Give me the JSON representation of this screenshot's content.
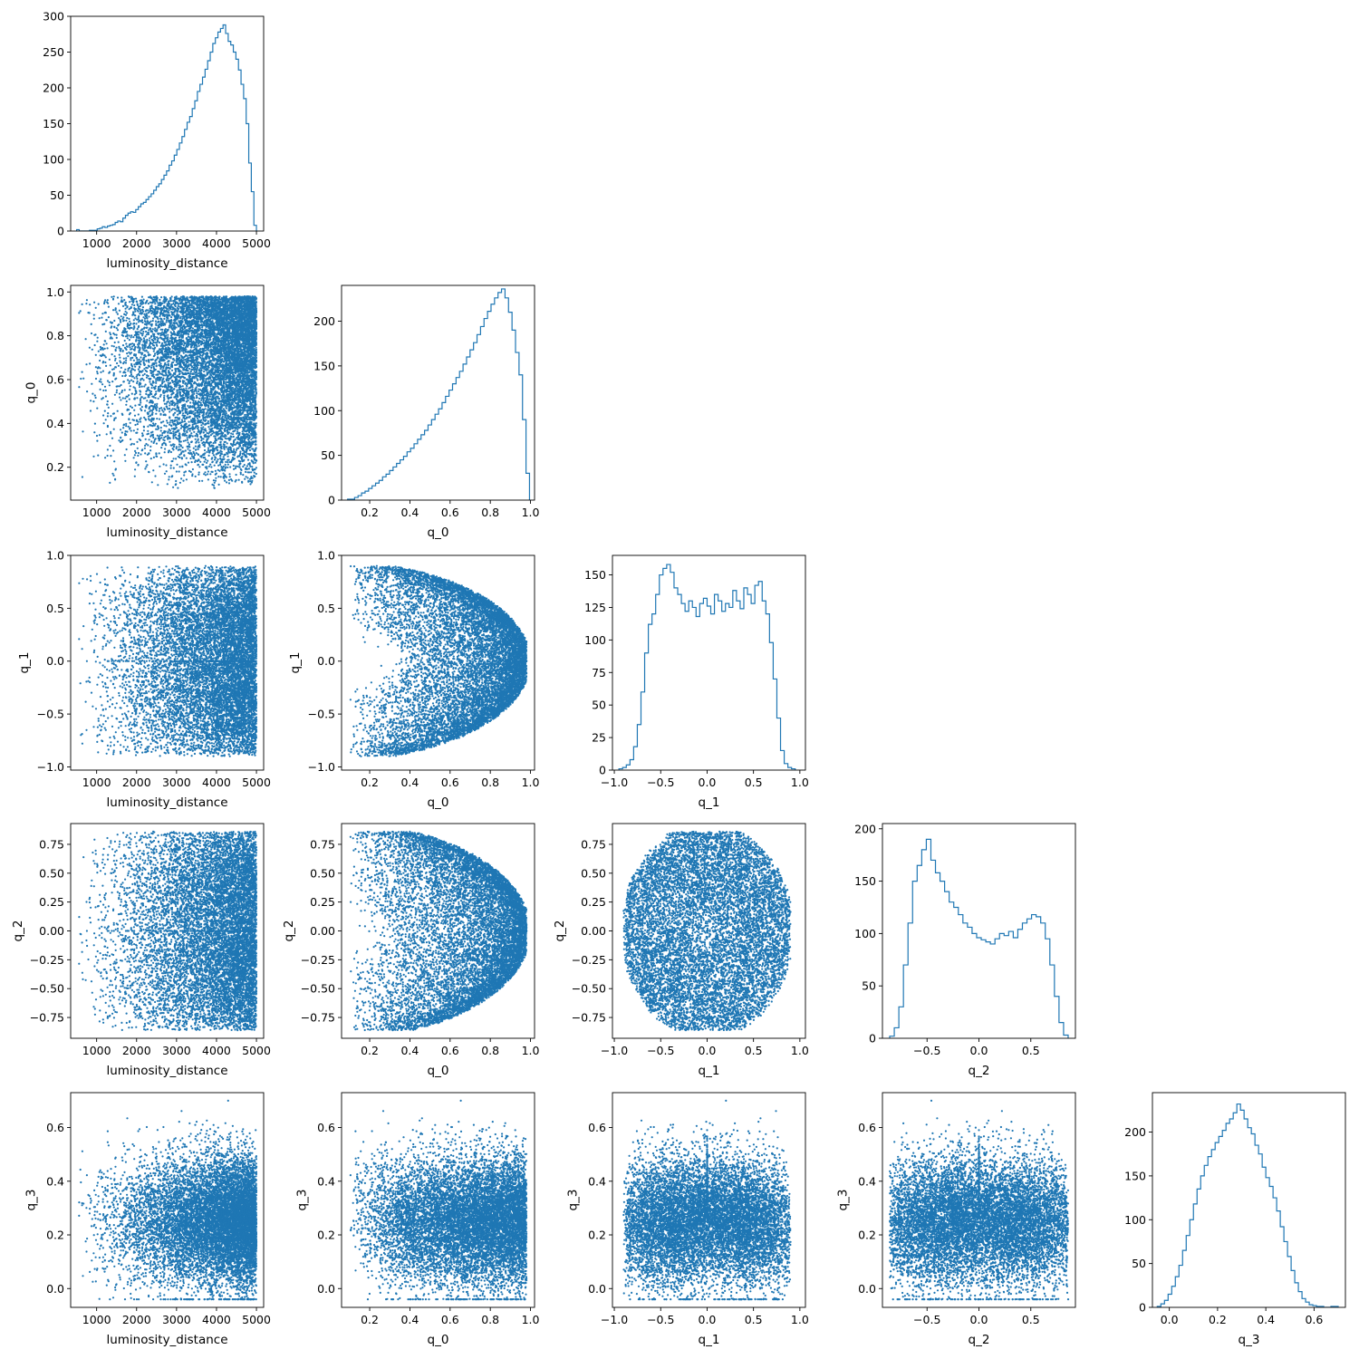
{
  "figure": {
    "kind": "corner-plot",
    "series_color": "#1f77b4"
  },
  "chart_data": [
    {
      "id": "hist-luminosity_distance",
      "type": "histogram",
      "row": 0,
      "col": 0,
      "xlabel": "luminosity_distance",
      "ylabel": "",
      "xlim": [
        350,
        5180
      ],
      "ylim": [
        0,
        300
      ],
      "xticks": [
        1000,
        2000,
        3000,
        4000,
        5000
      ],
      "yticks": [
        0,
        50,
        100,
        150,
        200,
        250,
        300
      ],
      "bin_edges": [
        500,
        5000
      ],
      "counts": [
        2,
        0,
        0,
        0,
        0,
        1,
        1,
        1,
        3,
        4,
        6,
        5,
        7,
        8,
        9,
        12,
        14,
        13,
        18,
        22,
        25,
        27,
        26,
        30,
        34,
        38,
        40,
        44,
        48,
        52,
        57,
        62,
        66,
        72,
        78,
        84,
        92,
        98,
        106,
        114,
        123,
        132,
        142,
        152,
        160,
        171,
        182,
        195,
        205,
        215,
        226,
        238,
        250,
        262,
        270,
        278,
        283,
        288,
        276,
        265,
        260,
        250,
        240,
        225,
        205,
        185,
        150,
        95,
        55,
        8
      ]
    },
    {
      "id": "scatter-luminosity_distance-q_0",
      "type": "scatter",
      "row": 1,
      "col": 0,
      "xlabel": "luminosity_distance",
      "ylabel": "q_0",
      "xlim": [
        350,
        5180
      ],
      "ylim": [
        0.05,
        1.03
      ],
      "xticks": [
        1000,
        2000,
        3000,
        4000,
        5000
      ],
      "yticks": [
        0.2,
        0.4,
        0.6,
        0.8,
        1.0
      ],
      "n_points": 10000,
      "x_param": "luminosity_distance",
      "y_param": "q_0"
    },
    {
      "id": "hist-q_0",
      "type": "histogram",
      "row": 1,
      "col": 1,
      "xlabel": "q_0",
      "ylabel": "",
      "xlim": [
        0.06,
        1.02
      ],
      "ylim": [
        0,
        240
      ],
      "xticks": [
        0.2,
        0.4,
        0.6,
        0.8,
        1.0
      ],
      "yticks": [
        0,
        50,
        100,
        150,
        200
      ],
      "bin_edges": [
        0.09,
        0.995
      ],
      "counts": [
        1,
        1,
        3,
        5,
        8,
        10,
        13,
        16,
        19,
        22,
        26,
        29,
        33,
        37,
        41,
        45,
        49,
        54,
        58,
        63,
        68,
        73,
        78,
        84,
        90,
        96,
        102,
        109,
        116,
        123,
        130,
        137,
        144,
        152,
        160,
        168,
        176,
        185,
        194,
        203,
        211,
        219,
        226,
        232,
        236,
        226,
        210,
        190,
        165,
        140,
        90,
        30
      ]
    },
    {
      "id": "scatter-luminosity_distance-q_1",
      "type": "scatter",
      "row": 2,
      "col": 0,
      "xlabel": "luminosity_distance",
      "ylabel": "q_1",
      "xlim": [
        350,
        5180
      ],
      "ylim": [
        -1.03,
        1.0
      ],
      "xticks": [
        1000,
        2000,
        3000,
        4000,
        5000
      ],
      "yticks": [
        -1.0,
        -0.5,
        0.0,
        0.5,
        1.0
      ],
      "n_points": 10000,
      "x_param": "luminosity_distance",
      "y_param": "q_1"
    },
    {
      "id": "scatter-q_0-q_1",
      "type": "scatter",
      "row": 2,
      "col": 1,
      "xlabel": "q_0",
      "ylabel": "q_1",
      "xlim": [
        0.06,
        1.02
      ],
      "ylim": [
        -1.03,
        1.0
      ],
      "xticks": [
        0.2,
        0.4,
        0.6,
        0.8,
        1.0
      ],
      "yticks": [
        -1.0,
        -0.5,
        0.0,
        0.5,
        1.0
      ],
      "n_points": 10000,
      "x_param": "q_0",
      "y_param": "q_1"
    },
    {
      "id": "hist-q_1",
      "type": "histogram",
      "row": 2,
      "col": 2,
      "xlabel": "q_1",
      "ylabel": "",
      "xlim": [
        -1.02,
        1.06
      ],
      "ylim": [
        0,
        165
      ],
      "xticks": [
        -1.0,
        -0.5,
        0.0,
        0.5,
        1.0
      ],
      "yticks": [
        0,
        25,
        50,
        75,
        100,
        125,
        150
      ],
      "bin_edges": [
        -0.95,
        0.95
      ],
      "counts": [
        1,
        2,
        4,
        8,
        18,
        35,
        60,
        90,
        112,
        120,
        135,
        150,
        155,
        158,
        152,
        140,
        135,
        128,
        122,
        130,
        125,
        118,
        128,
        132,
        126,
        120,
        135,
        130,
        122,
        128,
        125,
        138,
        130,
        124,
        140,
        135,
        128,
        142,
        145,
        130,
        120,
        98,
        70,
        40,
        15,
        5,
        2,
        1
      ]
    },
    {
      "id": "scatter-luminosity_distance-q_2",
      "type": "scatter",
      "row": 3,
      "col": 0,
      "xlabel": "luminosity_distance",
      "ylabel": "q_2",
      "xlim": [
        350,
        5180
      ],
      "ylim": [
        -0.93,
        0.93
      ],
      "xticks": [
        1000,
        2000,
        3000,
        4000,
        5000
      ],
      "yticks": [
        -0.75,
        -0.5,
        -0.25,
        0.0,
        0.25,
        0.5,
        0.75
      ],
      "n_points": 10000,
      "x_param": "luminosity_distance",
      "y_param": "q_2"
    },
    {
      "id": "scatter-q_0-q_2",
      "type": "scatter",
      "row": 3,
      "col": 1,
      "xlabel": "q_0",
      "ylabel": "q_2",
      "xlim": [
        0.06,
        1.02
      ],
      "ylim": [
        -0.93,
        0.93
      ],
      "xticks": [
        0.2,
        0.4,
        0.6,
        0.8,
        1.0
      ],
      "yticks": [
        -0.75,
        -0.5,
        -0.25,
        0.0,
        0.25,
        0.5,
        0.75
      ],
      "n_points": 10000,
      "x_param": "q_0",
      "y_param": "q_2"
    },
    {
      "id": "scatter-q_1-q_2",
      "type": "scatter",
      "row": 3,
      "col": 2,
      "xlabel": "q_1",
      "ylabel": "q_2",
      "xlim": [
        -1.02,
        1.06
      ],
      "ylim": [
        -0.93,
        0.93
      ],
      "xticks": [
        -1.0,
        -0.5,
        0.0,
        0.5,
        1.0
      ],
      "yticks": [
        -0.75,
        -0.5,
        -0.25,
        0.0,
        0.25,
        0.5,
        0.75
      ],
      "n_points": 10000,
      "x_param": "q_1",
      "y_param": "q_2"
    },
    {
      "id": "hist-q_2",
      "type": "histogram",
      "row": 3,
      "col": 3,
      "xlabel": "q_2",
      "ylabel": "",
      "xlim": [
        -0.93,
        0.93
      ],
      "ylim": [
        0,
        205
      ],
      "xticks": [
        -0.5,
        0.0,
        0.5
      ],
      "yticks": [
        0,
        50,
        100,
        150,
        200
      ],
      "bin_edges": [
        -0.86,
        0.86
      ],
      "counts": [
        2,
        10,
        30,
        70,
        110,
        150,
        165,
        180,
        190,
        170,
        158,
        150,
        140,
        130,
        125,
        118,
        110,
        106,
        100,
        96,
        94,
        92,
        90,
        95,
        100,
        98,
        102,
        96,
        104,
        110,
        114,
        118,
        116,
        110,
        95,
        70,
        40,
        15,
        3
      ]
    },
    {
      "id": "scatter-luminosity_distance-q_3",
      "type": "scatter",
      "row": 4,
      "col": 0,
      "xlabel": "luminosity_distance",
      "ylabel": "q_3",
      "xlim": [
        350,
        5180
      ],
      "ylim": [
        -0.07,
        0.73
      ],
      "xticks": [
        1000,
        2000,
        3000,
        4000,
        5000
      ],
      "yticks": [
        0.0,
        0.2,
        0.4,
        0.6
      ],
      "n_points": 10000,
      "x_param": "luminosity_distance",
      "y_param": "q_3"
    },
    {
      "id": "scatter-q_0-q_3",
      "type": "scatter",
      "row": 4,
      "col": 1,
      "xlabel": "q_0",
      "ylabel": "q_3",
      "xlim": [
        0.06,
        1.02
      ],
      "ylim": [
        -0.07,
        0.73
      ],
      "xticks": [
        0.2,
        0.4,
        0.6,
        0.8,
        1.0
      ],
      "yticks": [
        0.0,
        0.2,
        0.4,
        0.6
      ],
      "n_points": 10000,
      "x_param": "q_0",
      "y_param": "q_3"
    },
    {
      "id": "scatter-q_1-q_3",
      "type": "scatter",
      "row": 4,
      "col": 2,
      "xlabel": "q_1",
      "ylabel": "q_3",
      "xlim": [
        -1.02,
        1.06
      ],
      "ylim": [
        -0.07,
        0.73
      ],
      "xticks": [
        -1.0,
        -0.5,
        0.0,
        0.5,
        1.0
      ],
      "yticks": [
        0.0,
        0.2,
        0.4,
        0.6
      ],
      "n_points": 10000,
      "x_param": "q_1",
      "y_param": "q_3"
    },
    {
      "id": "scatter-q_2-q_3",
      "type": "scatter",
      "row": 4,
      "col": 3,
      "xlabel": "q_2",
      "ylabel": "q_3",
      "xlim": [
        -0.93,
        0.93
      ],
      "ylim": [
        -0.07,
        0.73
      ],
      "xticks": [
        -0.5,
        0.0,
        0.5
      ],
      "yticks": [
        0.0,
        0.2,
        0.4,
        0.6
      ],
      "n_points": 10000,
      "x_param": "q_2",
      "y_param": "q_3"
    },
    {
      "id": "hist-q_3",
      "type": "histogram",
      "row": 4,
      "col": 4,
      "xlabel": "q_3",
      "ylabel": "",
      "xlim": [
        -0.07,
        0.73
      ],
      "ylim": [
        0,
        245
      ],
      "xticks": [
        0.0,
        0.2,
        0.4,
        0.6
      ],
      "yticks": [
        0,
        50,
        100,
        150,
        200
      ],
      "bin_edges": [
        -0.05,
        0.7
      ],
      "counts": [
        1,
        4,
        8,
        15,
        24,
        35,
        48,
        65,
        82,
        100,
        118,
        135,
        150,
        162,
        172,
        180,
        188,
        195,
        202,
        210,
        215,
        222,
        232,
        225,
        215,
        205,
        198,
        185,
        175,
        160,
        148,
        138,
        125,
        110,
        92,
        75,
        58,
        42,
        28,
        18,
        10,
        6,
        3,
        2,
        1,
        1,
        0,
        0,
        1,
        1
      ]
    }
  ]
}
